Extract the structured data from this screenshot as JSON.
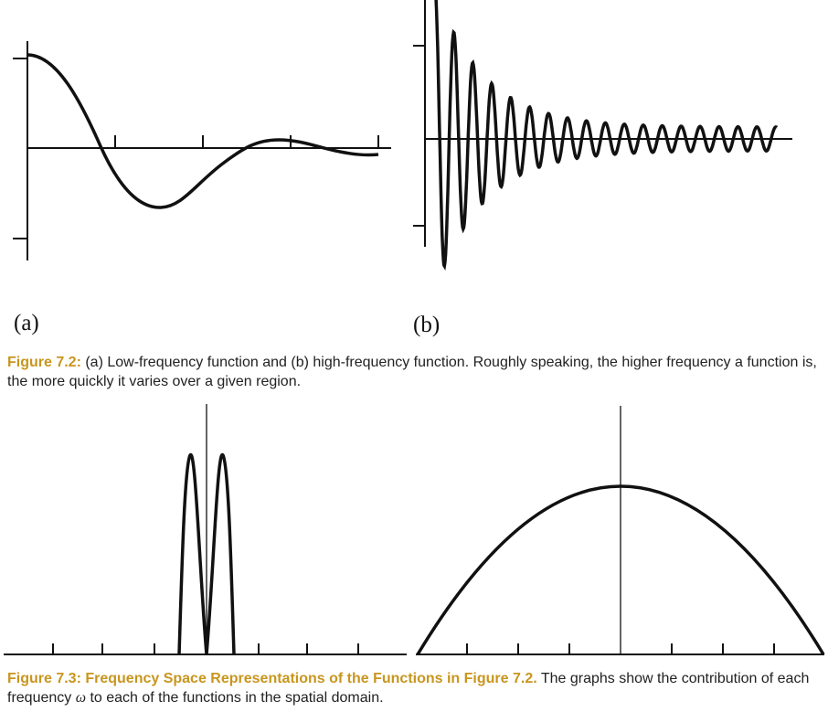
{
  "figure_7_2": {
    "panel_a_label": "(a)",
    "panel_b_label": "(b)",
    "caption_title": "Figure 7.2:",
    "caption_text": " (a) Low-frequency function and (b) high-frequency function. Roughly speaking, the higher frequency a function is, the more quickly it varies over a given region."
  },
  "figure_7_3": {
    "caption_title": "Figure 7.3: Frequency Space Representations of the Functions in Figure 7.2.",
    "caption_text_1": " The graphs show the contribution of each frequency ",
    "omega": "ω",
    "caption_text_2": " to each of the functions in the spatial domain."
  },
  "chart_data": [
    {
      "type": "line",
      "panel": "(a)",
      "shape": "low-frequency damped oscillation, starts at maximum, one deep trough then a small bump",
      "ticks_x": 4,
      "ticks_y": 2,
      "grid": false
    },
    {
      "type": "line",
      "panel": "(b)",
      "shape": "high-frequency decaying oscillation with about 18 cycles",
      "ticks_y": 2,
      "grid": false
    },
    {
      "type": "line",
      "panel": "frequency spectrum of (a)",
      "shape": "two narrow peaks symmetric about zero frequency",
      "ticks_x": 7,
      "grid": false
    },
    {
      "type": "line",
      "panel": "frequency spectrum of (b)",
      "shape": "broad bell/arch centered at zero frequency",
      "ticks_x": 8,
      "grid": false
    }
  ]
}
